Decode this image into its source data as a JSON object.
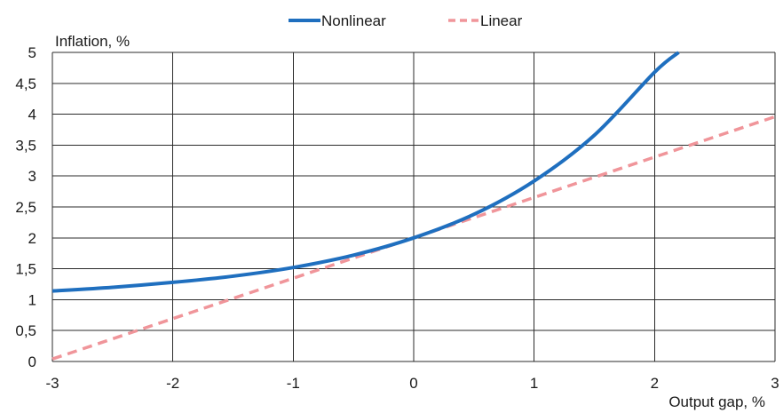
{
  "chart_data": {
    "type": "line",
    "title": "",
    "xlabel": "Output gap, %",
    "ylabel": "Inflation, %",
    "xlim": [
      -3,
      3
    ],
    "ylim": [
      0,
      5
    ],
    "x_ticks": [
      -3,
      -2,
      -1,
      0,
      1,
      2,
      3
    ],
    "x_tick_labels": [
      "-3",
      "-2",
      "-1",
      "0",
      "1",
      "2",
      "3"
    ],
    "y_ticks": [
      0,
      0.5,
      1,
      1.5,
      2,
      2.5,
      3,
      3.5,
      4,
      4.5,
      5
    ],
    "y_tick_labels": [
      "0",
      "0,5",
      "1",
      "1,5",
      "2",
      "2,5",
      "3",
      "3,5",
      "4",
      "4,5",
      "5"
    ],
    "grid": true,
    "legend_position": "top-center",
    "series": [
      {
        "name": "Nonlinear",
        "color": "#1f6fbf",
        "style": "solid",
        "x": [
          -3,
          -2.5,
          -2,
          -1.5,
          -1,
          -0.5,
          0,
          0.5,
          1,
          1.5,
          2,
          2.2
        ],
        "y": [
          1.14,
          1.2,
          1.28,
          1.38,
          1.52,
          1.72,
          2.0,
          2.38,
          2.92,
          3.66,
          4.68,
          5.0
        ]
      },
      {
        "name": "Linear",
        "color": "#f0959a",
        "style": "dashed",
        "x": [
          -3,
          3
        ],
        "y": [
          0.04,
          3.96
        ]
      }
    ]
  }
}
